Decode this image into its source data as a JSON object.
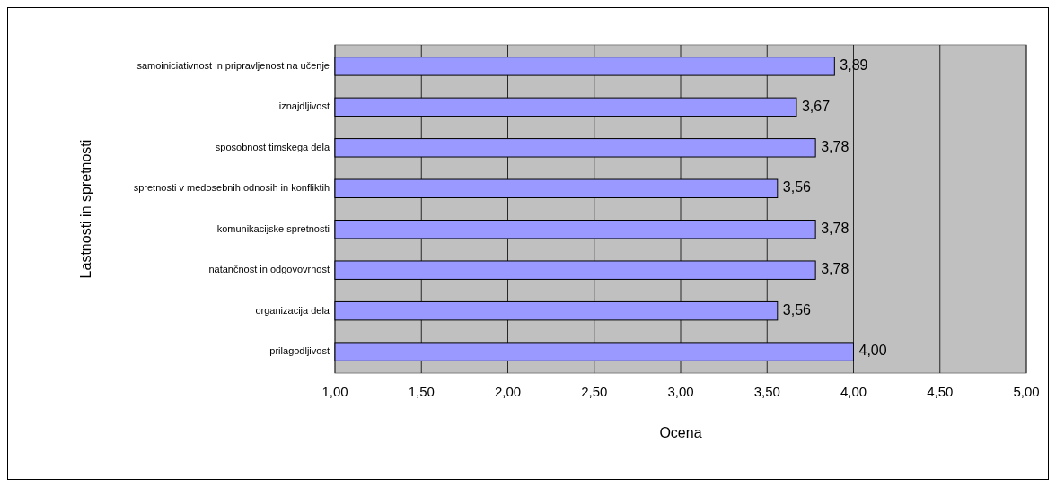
{
  "chart_data": {
    "type": "bar",
    "orientation": "horizontal",
    "xlabel": "Ocena",
    "ylabel": "Lastnosti in spretnosti",
    "categories": [
      "samoiniciativnost in pripravljenost na učenje",
      "iznajdljivost",
      "sposobnost timskega dela",
      "spretnosti v medosebnih odnosih in konfliktih",
      "komunikacijske spretnosti",
      "natančnost in odgovovrnost",
      "organizacija dela",
      "prilagodljivost"
    ],
    "values": [
      3.89,
      3.67,
      3.78,
      3.56,
      3.78,
      3.78,
      3.56,
      4.0
    ],
    "value_labels": [
      "3,89",
      "3,67",
      "3,78",
      "3,56",
      "3,78",
      "3,78",
      "3,56",
      "4,00"
    ],
    "color": "#9999ff",
    "xlim": [
      1,
      5
    ],
    "xticks": [
      {
        "value": 1,
        "label": "1,00"
      },
      {
        "value": 1.5,
        "label": "1,50"
      },
      {
        "value": 2,
        "label": "2,00"
      },
      {
        "value": 2.5,
        "label": "2,50"
      },
      {
        "value": 3,
        "label": "3,00"
      },
      {
        "value": 3.5,
        "label": "3,50"
      },
      {
        "value": 4,
        "label": "4,00"
      },
      {
        "value": 4.5,
        "label": "4,50"
      },
      {
        "value": 5,
        "label": "5,00"
      }
    ],
    "grid": "x",
    "legend": false
  }
}
